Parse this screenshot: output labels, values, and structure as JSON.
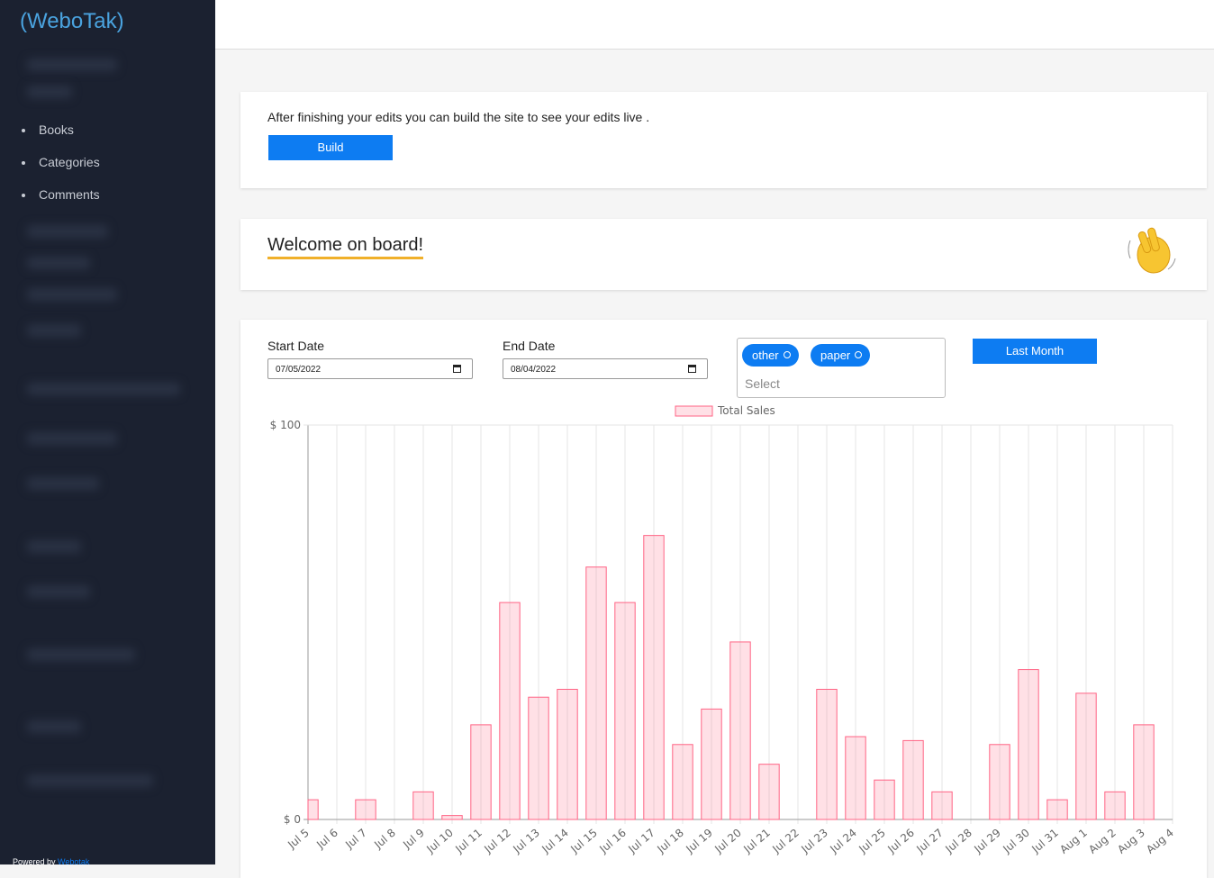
{
  "sidebar": {
    "logo": "(WeboTak)",
    "menu": [
      "Books",
      "Categories",
      "Comments"
    ],
    "footer": {
      "prefix": "Powered by",
      "link": "Webotak"
    }
  },
  "notice": {
    "text": "After finishing your edits you can build the site to see your edits live .",
    "button": "Build"
  },
  "welcome": {
    "title": "Welcome on board!"
  },
  "filters": {
    "start_label": "Start Date",
    "start_value": "07/05/2022",
    "end_label": "End Date",
    "end_value": "08/04/2022",
    "tags": [
      "other",
      "paper"
    ],
    "select_placeholder": "Select",
    "last_month_button": "Last Month"
  },
  "chart_data": {
    "type": "bar",
    "categories": [
      "Jul 5",
      "Jul 6",
      "Jul 7",
      "Jul 8",
      "Jul 9",
      "Jul 10",
      "Jul 11",
      "Jul 12",
      "Jul 13",
      "Jul 14",
      "Jul 15",
      "Jul 16",
      "Jul 17",
      "Jul 18",
      "Jul 19",
      "Jul 20",
      "Jul 21",
      "Jul 22",
      "Jul 23",
      "Jul 24",
      "Jul 25",
      "Jul 26",
      "Jul 27",
      "Jul 28",
      "Jul 29",
      "Jul 30",
      "Jul 31",
      "Aug 1",
      "Aug 2",
      "Aug 3",
      "Aug 4"
    ],
    "series": [
      {
        "name": "Total Sales",
        "color": "#ff6384",
        "values": [
          5,
          0,
          5,
          0,
          7,
          1,
          24,
          55,
          31,
          33,
          64,
          55,
          72,
          19,
          28,
          45,
          14,
          0,
          33,
          21,
          10,
          20,
          7,
          0,
          19,
          38,
          5,
          32,
          7,
          24,
          0
        ]
      }
    ],
    "ylim": [
      0,
      100
    ],
    "yticks": [
      {
        "value": 0,
        "label": "$ 0"
      },
      {
        "value": 100,
        "label": "$ 100"
      }
    ],
    "grid": true,
    "legend": "top"
  }
}
